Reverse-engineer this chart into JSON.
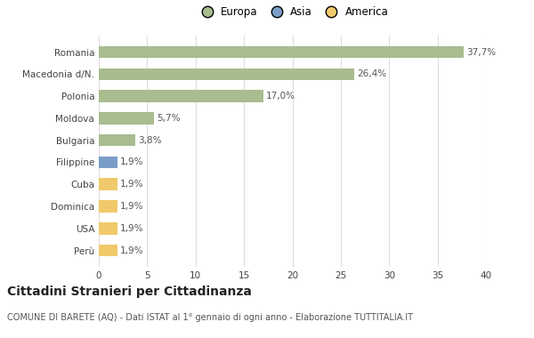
{
  "categories": [
    "Romania",
    "Macedonia d/N.",
    "Polonia",
    "Moldova",
    "Bulgaria",
    "Filippine",
    "Cuba",
    "Dominica",
    "USA",
    "Perù"
  ],
  "values": [
    37.7,
    26.4,
    17.0,
    5.7,
    3.8,
    1.9,
    1.9,
    1.9,
    1.9,
    1.9
  ],
  "colors": [
    "#a8bc8f",
    "#a8bc8f",
    "#a8bc8f",
    "#a8bc8f",
    "#a8bc8f",
    "#7a9dc8",
    "#f0c96a",
    "#f0c96a",
    "#f0c96a",
    "#f0c96a"
  ],
  "labels": [
    "37,7%",
    "26,4%",
    "17,0%",
    "5,7%",
    "3,8%",
    "1,9%",
    "1,9%",
    "1,9%",
    "1,9%",
    "1,9%"
  ],
  "legend": [
    {
      "label": "Europa",
      "color": "#a8bc8f"
    },
    {
      "label": "Asia",
      "color": "#7a9dc8"
    },
    {
      "label": "America",
      "color": "#f0c96a"
    }
  ],
  "xlim": [
    0,
    40
  ],
  "xticks": [
    0,
    5,
    10,
    15,
    20,
    25,
    30,
    35,
    40
  ],
  "title": "Cittadini Stranieri per Cittadinanza",
  "subtitle": "COMUNE DI BARETE (AQ) - Dati ISTAT al 1° gennaio di ogni anno - Elaborazione TUTTITALIA.IT",
  "background_color": "#ffffff",
  "grid_color": "#dddddd",
  "bar_height": 0.55,
  "label_fontsize": 7.5,
  "tick_fontsize": 7.5,
  "legend_fontsize": 8.5,
  "title_fontsize": 10,
  "subtitle_fontsize": 7
}
